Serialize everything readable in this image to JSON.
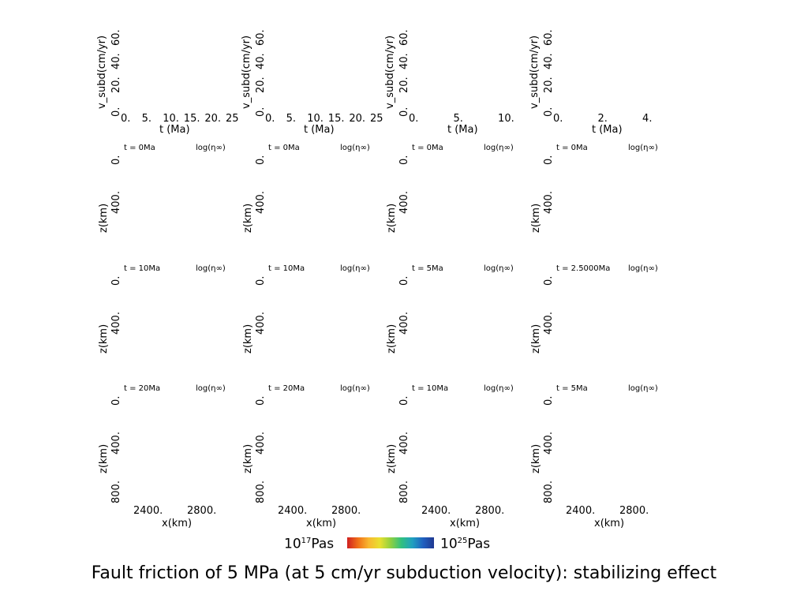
{
  "caption": "Fault friction of 5 MPa (at 5 cm/yr subduction velocity): stabilizing effect",
  "colorbar": {
    "left_label": "10",
    "left_sup": "17",
    "left_unit": "Pas",
    "right_label": "10",
    "right_sup": "25",
    "right_unit": "Pas"
  },
  "viscosity_label": "log(η∞)",
  "velocity_plots": [
    {
      "ylabel": "v_subd(cm/yr)",
      "xlabel": "t (Ma)",
      "xticks": [
        "0.",
        "5.",
        "10.",
        "15.",
        "20.",
        "25"
      ],
      "yticks": [
        "0.",
        "20.",
        "40.",
        "60."
      ]
    },
    {
      "ylabel": "v_subd(cm/yr)",
      "xlabel": "t (Ma)",
      "xticks": [
        "0.",
        "5.",
        "10.",
        "15.",
        "20.",
        "25"
      ],
      "yticks": [
        "0.",
        "20.",
        "40.",
        "60."
      ]
    },
    {
      "ylabel": "v_subd(cm/yr)",
      "xlabel": "t (Ma)",
      "xticks": [
        "0.",
        "5.",
        "10."
      ],
      "yticks": [
        "0.",
        "20.",
        "40.",
        "60."
      ]
    },
    {
      "ylabel": "v_subd(cm/yr)",
      "xlabel": "t (Ma)",
      "xticks": [
        "0.",
        "2.",
        "4."
      ],
      "yticks": [
        "0.",
        "20.",
        "40.",
        "60."
      ]
    }
  ],
  "panel_rows": [
    [
      "t = 0Ma",
      "t = 0Ma",
      "t = 0Ma",
      "t = 0Ma"
    ],
    [
      "t = 10Ma",
      "t = 10Ma",
      "t = 5Ma",
      "t = 2.5000Ma"
    ],
    [
      "t = 20Ma",
      "t = 20Ma",
      "t = 10Ma",
      "t = 5Ma"
    ]
  ],
  "z_axis": {
    "label": "z(km)",
    "ticks": [
      "0.",
      "400.",
      "800."
    ]
  },
  "x_axis": {
    "label": "x(km)",
    "ticks": [
      "2400.",
      "2800."
    ]
  }
}
